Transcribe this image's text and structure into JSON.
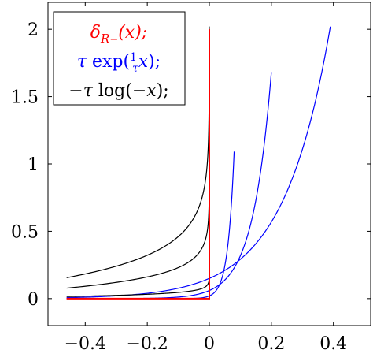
{
  "chart_data": {
    "type": "line",
    "title": "",
    "xlabel": "",
    "ylabel": "",
    "xlim": [
      -0.52,
      0.52
    ],
    "ylim": [
      -0.2,
      2.2
    ],
    "xticks": [
      -0.4,
      -0.2,
      0,
      0.2,
      0.4
    ],
    "xtick_labels": [
      "−0.4",
      "−0.2",
      "0",
      "0.2",
      "0.4"
    ],
    "yticks": [
      0,
      0.5,
      1,
      1.5,
      2
    ],
    "ytick_labels": [
      "0",
      "0.5",
      "1",
      "1.5",
      "2"
    ],
    "grid": false,
    "legend_position": "top-left",
    "legend": [
      {
        "label": "δ_{R_−}(x);",
        "color": "#ff0000"
      },
      {
        "label": "τ exp(x/τ);",
        "color": "#0000ff"
      },
      {
        "label": "−τ log(−x);",
        "color": "#000000"
      }
    ],
    "series": [
      {
        "color": "#ff0000",
        "kind": "indicator",
        "x": [
          -0.46,
          0,
          0,
          0
        ],
        "y": [
          0,
          0,
          0,
          2
        ]
      },
      {
        "color": "#0000ff",
        "kind": "exp",
        "tau": 0.15,
        "x": [
          -0.46,
          -0.3,
          -0.2,
          -0.1,
          0,
          0.1,
          0.2,
          0.3,
          0.4,
          0.46
        ],
        "y": [
          0.007,
          0.02,
          0.04,
          0.08,
          0.15,
          0.29,
          0.57,
          1.11,
          2.16,
          3.04
        ]
      },
      {
        "color": "#0000ff",
        "kind": "exp",
        "tau": 0.06,
        "x": [
          -0.46,
          -0.3,
          -0.2,
          -0.1,
          0,
          0.05,
          0.1,
          0.15,
          0.2
        ],
        "y": [
          0.0003,
          0.0004,
          0.0021,
          0.011,
          0.06,
          0.138,
          0.318,
          0.731,
          1.68
        ]
      },
      {
        "color": "#0000ff",
        "kind": "exp",
        "tau": 0.02,
        "x": [
          -0.46,
          -0.2,
          -0.1,
          0,
          0.02,
          0.04,
          0.06,
          0.08
        ],
        "y": [
          0,
          0,
          0.0001,
          0.02,
          0.054,
          0.148,
          0.402,
          1.09
        ]
      },
      {
        "color": "#000000",
        "kind": "neglog",
        "tau": 0.2,
        "x": [
          -0.46,
          -0.3,
          -0.2,
          -0.1,
          -0.05,
          -0.02,
          -0.01,
          -0.001
        ],
        "y": [
          0.155,
          0.241,
          0.322,
          0.461,
          0.599,
          0.782,
          0.921,
          1.382
        ]
      },
      {
        "color": "#000000",
        "kind": "neglog",
        "tau": 0.1,
        "x": [
          -0.46,
          -0.3,
          -0.2,
          -0.1,
          -0.05,
          -0.02,
          -0.01,
          -0.001
        ],
        "y": [
          0.078,
          0.12,
          0.161,
          0.23,
          0.3,
          0.391,
          0.461,
          0.691
        ]
      },
      {
        "color": "#000000",
        "kind": "neglog",
        "tau": 0.02,
        "x": [
          -0.46,
          -0.3,
          -0.2,
          -0.1,
          -0.05,
          -0.02,
          -0.01,
          -0.001
        ],
        "y": [
          0.016,
          0.024,
          0.032,
          0.046,
          0.06,
          0.078,
          0.092,
          0.138
        ]
      }
    ]
  }
}
